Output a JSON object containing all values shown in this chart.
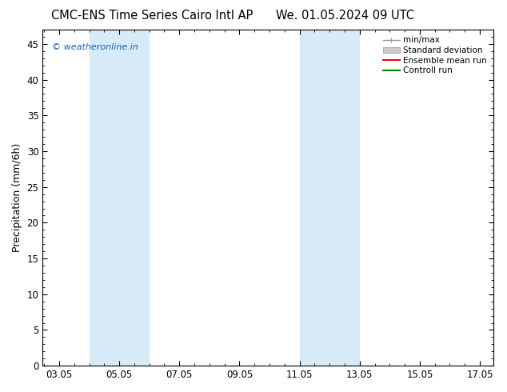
{
  "title_left": "CMC-ENS Time Series Cairo Intl AP",
  "title_right": "We. 01.05.2024 09 UTC",
  "ylabel": "Precipitation (mm/6h)",
  "watermark": "© weatheronline.in",
  "ylim": [
    0,
    47
  ],
  "yticks": [
    0,
    5,
    10,
    15,
    20,
    25,
    30,
    35,
    40,
    45
  ],
  "xlim_start": 2.5,
  "xlim_end": 17.5,
  "xtick_positions": [
    3.05,
    5.05,
    7.05,
    9.05,
    11.05,
    13.05,
    15.05,
    17.05
  ],
  "xtick_labels": [
    "03.05",
    "05.05",
    "07.05",
    "09.05",
    "11.05",
    "13.05",
    "15.05",
    "17.05"
  ],
  "shaded_bands": [
    {
      "xmin": 4.05,
      "xmax": 6.05,
      "color": "#d6eaf8"
    },
    {
      "xmin": 11.05,
      "xmax": 13.05,
      "color": "#d6eaf8"
    }
  ],
  "legend_labels": [
    "min/max",
    "Standard deviation",
    "Ensemble mean run",
    "Controll run"
  ],
  "minmax_color": "#999999",
  "stddev_color": "#cccccc",
  "ensemble_color": "#ff0000",
  "control_color": "#008000",
  "bg_color": "#ffffff",
  "plot_bg_color": "#ffffff",
  "title_fontsize": 10.5,
  "axis_label_fontsize": 9,
  "tick_fontsize": 8.5,
  "watermark_color": "#1a5fa8",
  "watermark_fontsize": 8
}
